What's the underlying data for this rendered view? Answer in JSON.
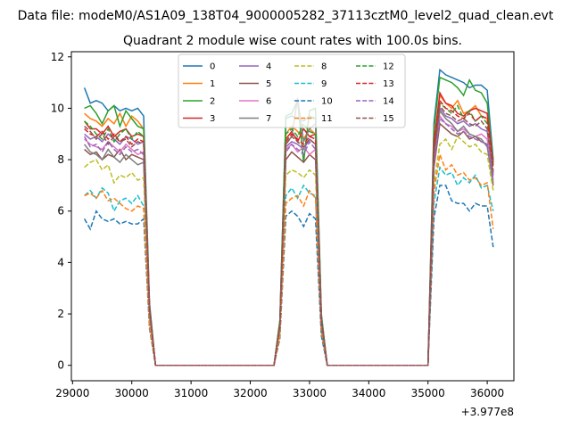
{
  "chart_data": {
    "type": "line",
    "suptitle": "Data file: modeM0/AS1A09_138T04_9000005282_37113cztM0_level2_quad_clean.evt",
    "title": "Quadrant 2 module wise count rates with 100.0s bins.",
    "xlabel": "",
    "ylabel": "",
    "x_offset_label": "+3.977e8",
    "xlim": [
      28980,
      36450
    ],
    "ylim": [
      -0.6,
      12.2
    ],
    "xticks": [
      29000,
      30000,
      31000,
      32000,
      33000,
      34000,
      35000,
      36000
    ],
    "yticks": [
      0,
      2,
      4,
      6,
      8,
      10,
      12
    ],
    "grid": false,
    "legend_position": "top-center",
    "x": [
      29200,
      29300,
      29400,
      29500,
      29600,
      29700,
      29800,
      29900,
      30000,
      30100,
      30200,
      30300,
      30400,
      30500,
      30600,
      30700,
      30800,
      30900,
      31000,
      31100,
      31200,
      31300,
      31400,
      31500,
      31600,
      31700,
      31800,
      31900,
      32000,
      32100,
      32200,
      32300,
      32400,
      32500,
      32600,
      32700,
      32800,
      32900,
      33000,
      33100,
      33200,
      33300,
      33400,
      33500,
      33600,
      33700,
      33800,
      33900,
      34000,
      34100,
      34200,
      34300,
      34400,
      34500,
      34600,
      34700,
      34800,
      34900,
      35000,
      35100,
      35200,
      35300,
      35400,
      35500,
      35600,
      35700,
      35800,
      35900,
      36000,
      36100
    ],
    "series": [
      {
        "name": "0",
        "color": "#1f77b4",
        "dash": "solid",
        "plateau": [
          10.8,
          10.2,
          10.3,
          10.2,
          9.9,
          10.1,
          9.9,
          10.0,
          9.9,
          10.0,
          9.7
        ],
        "plateau2": [
          9.6,
          9.7,
          9.6,
          9.5,
          9.7,
          9.6
        ],
        "plateau3": [
          11.5,
          11.3,
          11.2,
          11.1,
          11.0,
          10.8,
          10.9,
          10.9,
          10.7,
          8.0
        ]
      },
      {
        "name": "1",
        "color": "#ff7f0e",
        "dash": "solid",
        "plateau": [
          9.8,
          9.6,
          9.5,
          9.3,
          9.6,
          9.4,
          9.8,
          9.3,
          9.7,
          9.5,
          9.2
        ],
        "plateau2": [
          9.0,
          9.3,
          9.1,
          8.8,
          9.2,
          9.0
        ],
        "plateau3": [
          10.5,
          10.2,
          10.0,
          10.3,
          9.8,
          9.9,
          10.1,
          9.7,
          9.6,
          7.9
        ]
      },
      {
        "name": "2",
        "color": "#2ca02c",
        "dash": "solid",
        "plateau": [
          10.0,
          10.1,
          9.8,
          9.4,
          9.9,
          10.1,
          9.3,
          9.9,
          9.6,
          9.3,
          9.2
        ],
        "plateau2": [
          9.7,
          9.8,
          10.3,
          7.9,
          9.9,
          10.0
        ],
        "plateau3": [
          11.2,
          11.1,
          11.0,
          10.8,
          10.5,
          11.1,
          10.7,
          10.6,
          10.2,
          7.9
        ]
      },
      {
        "name": "3",
        "color": "#d62728",
        "dash": "solid",
        "plateau": [
          9.5,
          9.2,
          9.2,
          9.0,
          9.3,
          8.9,
          9.1,
          9.2,
          8.9,
          9.0,
          8.9
        ],
        "plateau2": [
          8.8,
          9.1,
          8.7,
          9.2,
          8.9,
          9.0
        ],
        "plateau3": [
          10.6,
          10.2,
          10.1,
          9.8,
          9.7,
          9.9,
          10.0,
          9.9,
          9.8,
          7.8
        ]
      },
      {
        "name": "4",
        "color": "#9467bd",
        "dash": "solid",
        "plateau": [
          9.0,
          8.8,
          8.9,
          8.7,
          9.0,
          8.8,
          8.6,
          8.9,
          8.8,
          8.6,
          8.7
        ],
        "plateau2": [
          8.5,
          8.7,
          8.6,
          8.4,
          8.8,
          8.6
        ],
        "plateau3": [
          10.0,
          9.7,
          9.6,
          9.4,
          9.5,
          9.3,
          9.4,
          9.2,
          9.1,
          7.4
        ]
      },
      {
        "name": "5",
        "color": "#8c564b",
        "dash": "solid",
        "plateau": [
          8.4,
          8.2,
          8.3,
          8.0,
          8.2,
          8.1,
          8.4,
          8.0,
          8.2,
          8.1,
          8.0
        ],
        "plateau2": [
          8.0,
          8.3,
          8.1,
          7.9,
          8.2,
          8.0
        ],
        "plateau3": [
          9.4,
          9.2,
          9.0,
          8.9,
          9.1,
          8.8,
          8.9,
          8.7,
          8.6,
          7.0
        ]
      },
      {
        "name": "6",
        "color": "#e377c2",
        "dash": "solid",
        "plateau": [
          8.8,
          8.6,
          8.5,
          8.4,
          8.7,
          8.5,
          8.3,
          8.6,
          8.4,
          8.2,
          8.3
        ],
        "plateau2": [
          8.4,
          8.6,
          8.3,
          8.5,
          8.2,
          8.4
        ],
        "plateau3": [
          9.7,
          9.4,
          9.3,
          9.1,
          9.2,
          9.0,
          8.9,
          9.0,
          8.8,
          7.2
        ]
      },
      {
        "name": "7",
        "color": "#7f7f7f",
        "dash": "solid",
        "plateau": [
          8.6,
          8.3,
          8.2,
          8.0,
          8.4,
          8.1,
          7.9,
          8.2,
          8.0,
          7.8,
          7.9
        ],
        "plateau2": [
          8.6,
          8.9,
          10.4,
          8.7,
          9.2,
          9.4
        ],
        "plateau3": [
          9.9,
          9.6,
          9.4,
          9.1,
          9.3,
          9.0,
          8.9,
          8.8,
          8.5,
          7.1
        ]
      },
      {
        "name": "8",
        "color": "#bcbd22",
        "dash": "dashed",
        "plateau": [
          7.7,
          7.9,
          8.0,
          7.6,
          7.8,
          7.1,
          7.4,
          7.3,
          7.5,
          7.2,
          7.3
        ],
        "plateau2": [
          7.4,
          7.6,
          7.5,
          7.3,
          7.6,
          7.4
        ],
        "plateau3": [
          8.6,
          8.8,
          8.4,
          8.9,
          8.7,
          8.5,
          8.6,
          8.3,
          8.2,
          6.8
        ]
      },
      {
        "name": "9",
        "color": "#17becf",
        "dash": "dashed",
        "plateau": [
          6.6,
          6.8,
          6.5,
          6.9,
          6.7,
          6.0,
          6.4,
          6.5,
          6.3,
          6.6,
          6.2
        ],
        "plateau2": [
          6.6,
          6.9,
          6.5,
          7.0,
          6.7,
          6.6
        ],
        "plateau3": [
          7.7,
          7.4,
          7.5,
          7.0,
          7.3,
          7.1,
          7.4,
          6.9,
          7.0,
          6.0
        ]
      },
      {
        "name": "10",
        "color": "#1f77b4",
        "dash": "dashed",
        "plateau": [
          5.7,
          5.3,
          6.0,
          5.7,
          5.6,
          5.7,
          5.5,
          5.6,
          5.5,
          5.5,
          5.7
        ],
        "plateau2": [
          5.8,
          6.0,
          5.8,
          5.4,
          5.9,
          5.7
        ],
        "plateau3": [
          7.0,
          7.0,
          6.4,
          6.3,
          6.3,
          6.0,
          6.3,
          6.2,
          6.2,
          4.6
        ]
      },
      {
        "name": "11",
        "color": "#ff7f0e",
        "dash": "dashed",
        "plateau": [
          6.6,
          6.7,
          6.5,
          6.8,
          6.4,
          6.5,
          6.3,
          6.1,
          6.0,
          6.2,
          6.1
        ],
        "plateau2": [
          6.3,
          6.5,
          6.6,
          6.2,
          6.8,
          6.5
        ],
        "plateau3": [
          8.2,
          7.6,
          7.8,
          7.4,
          7.5,
          7.2,
          7.3,
          7.0,
          7.1,
          5.3
        ]
      },
      {
        "name": "12",
        "color": "#2ca02c",
        "dash": "dashed",
        "plateau": [
          9.5,
          9.3,
          9.0,
          8.8,
          9.2,
          8.7,
          9.0,
          9.2,
          8.8,
          9.1,
          8.9
        ],
        "plateau2": [
          9.0,
          9.2,
          8.9,
          9.4,
          9.1,
          9.0
        ],
        "plateau3": [
          10.2,
          10.0,
          9.8,
          10.1,
          9.6,
          9.9,
          9.5,
          9.7,
          9.4,
          7.7
        ]
      },
      {
        "name": "13",
        "color": "#d62728",
        "dash": "dashed",
        "plateau": [
          9.2,
          9.0,
          8.9,
          9.1,
          8.8,
          9.0,
          8.7,
          8.9,
          8.6,
          8.8,
          8.7
        ],
        "plateau2": [
          8.7,
          9.0,
          8.8,
          8.6,
          8.9,
          8.8
        ],
        "plateau3": [
          10.3,
          10.0,
          9.9,
          9.7,
          9.6,
          9.8,
          9.5,
          9.7,
          9.6,
          7.6
        ]
      },
      {
        "name": "14",
        "color": "#9467bd",
        "dash": "dashed",
        "plateau": [
          8.9,
          8.5,
          8.6,
          8.3,
          8.7,
          8.4,
          8.2,
          8.5,
          8.3,
          8.4,
          8.2
        ],
        "plateau2": [
          8.3,
          8.6,
          8.4,
          8.2,
          8.7,
          8.4
        ],
        "plateau3": [
          9.6,
          9.4,
          9.2,
          9.0,
          9.1,
          8.9,
          8.8,
          8.7,
          8.6,
          7.3
        ]
      },
      {
        "name": "15",
        "color": "#8c564b",
        "dash": "dashed",
        "plateau": [
          9.3,
          9.1,
          8.8,
          9.0,
          8.6,
          8.9,
          8.7,
          8.8,
          8.5,
          8.7,
          8.6
        ],
        "plateau2": [
          8.6,
          8.9,
          8.7,
          8.5,
          8.8,
          8.6
        ],
        "plateau3": [
          10.1,
          9.8,
          9.7,
          9.5,
          9.6,
          9.4,
          9.3,
          9.5,
          9.2,
          7.5
        ]
      }
    ]
  }
}
